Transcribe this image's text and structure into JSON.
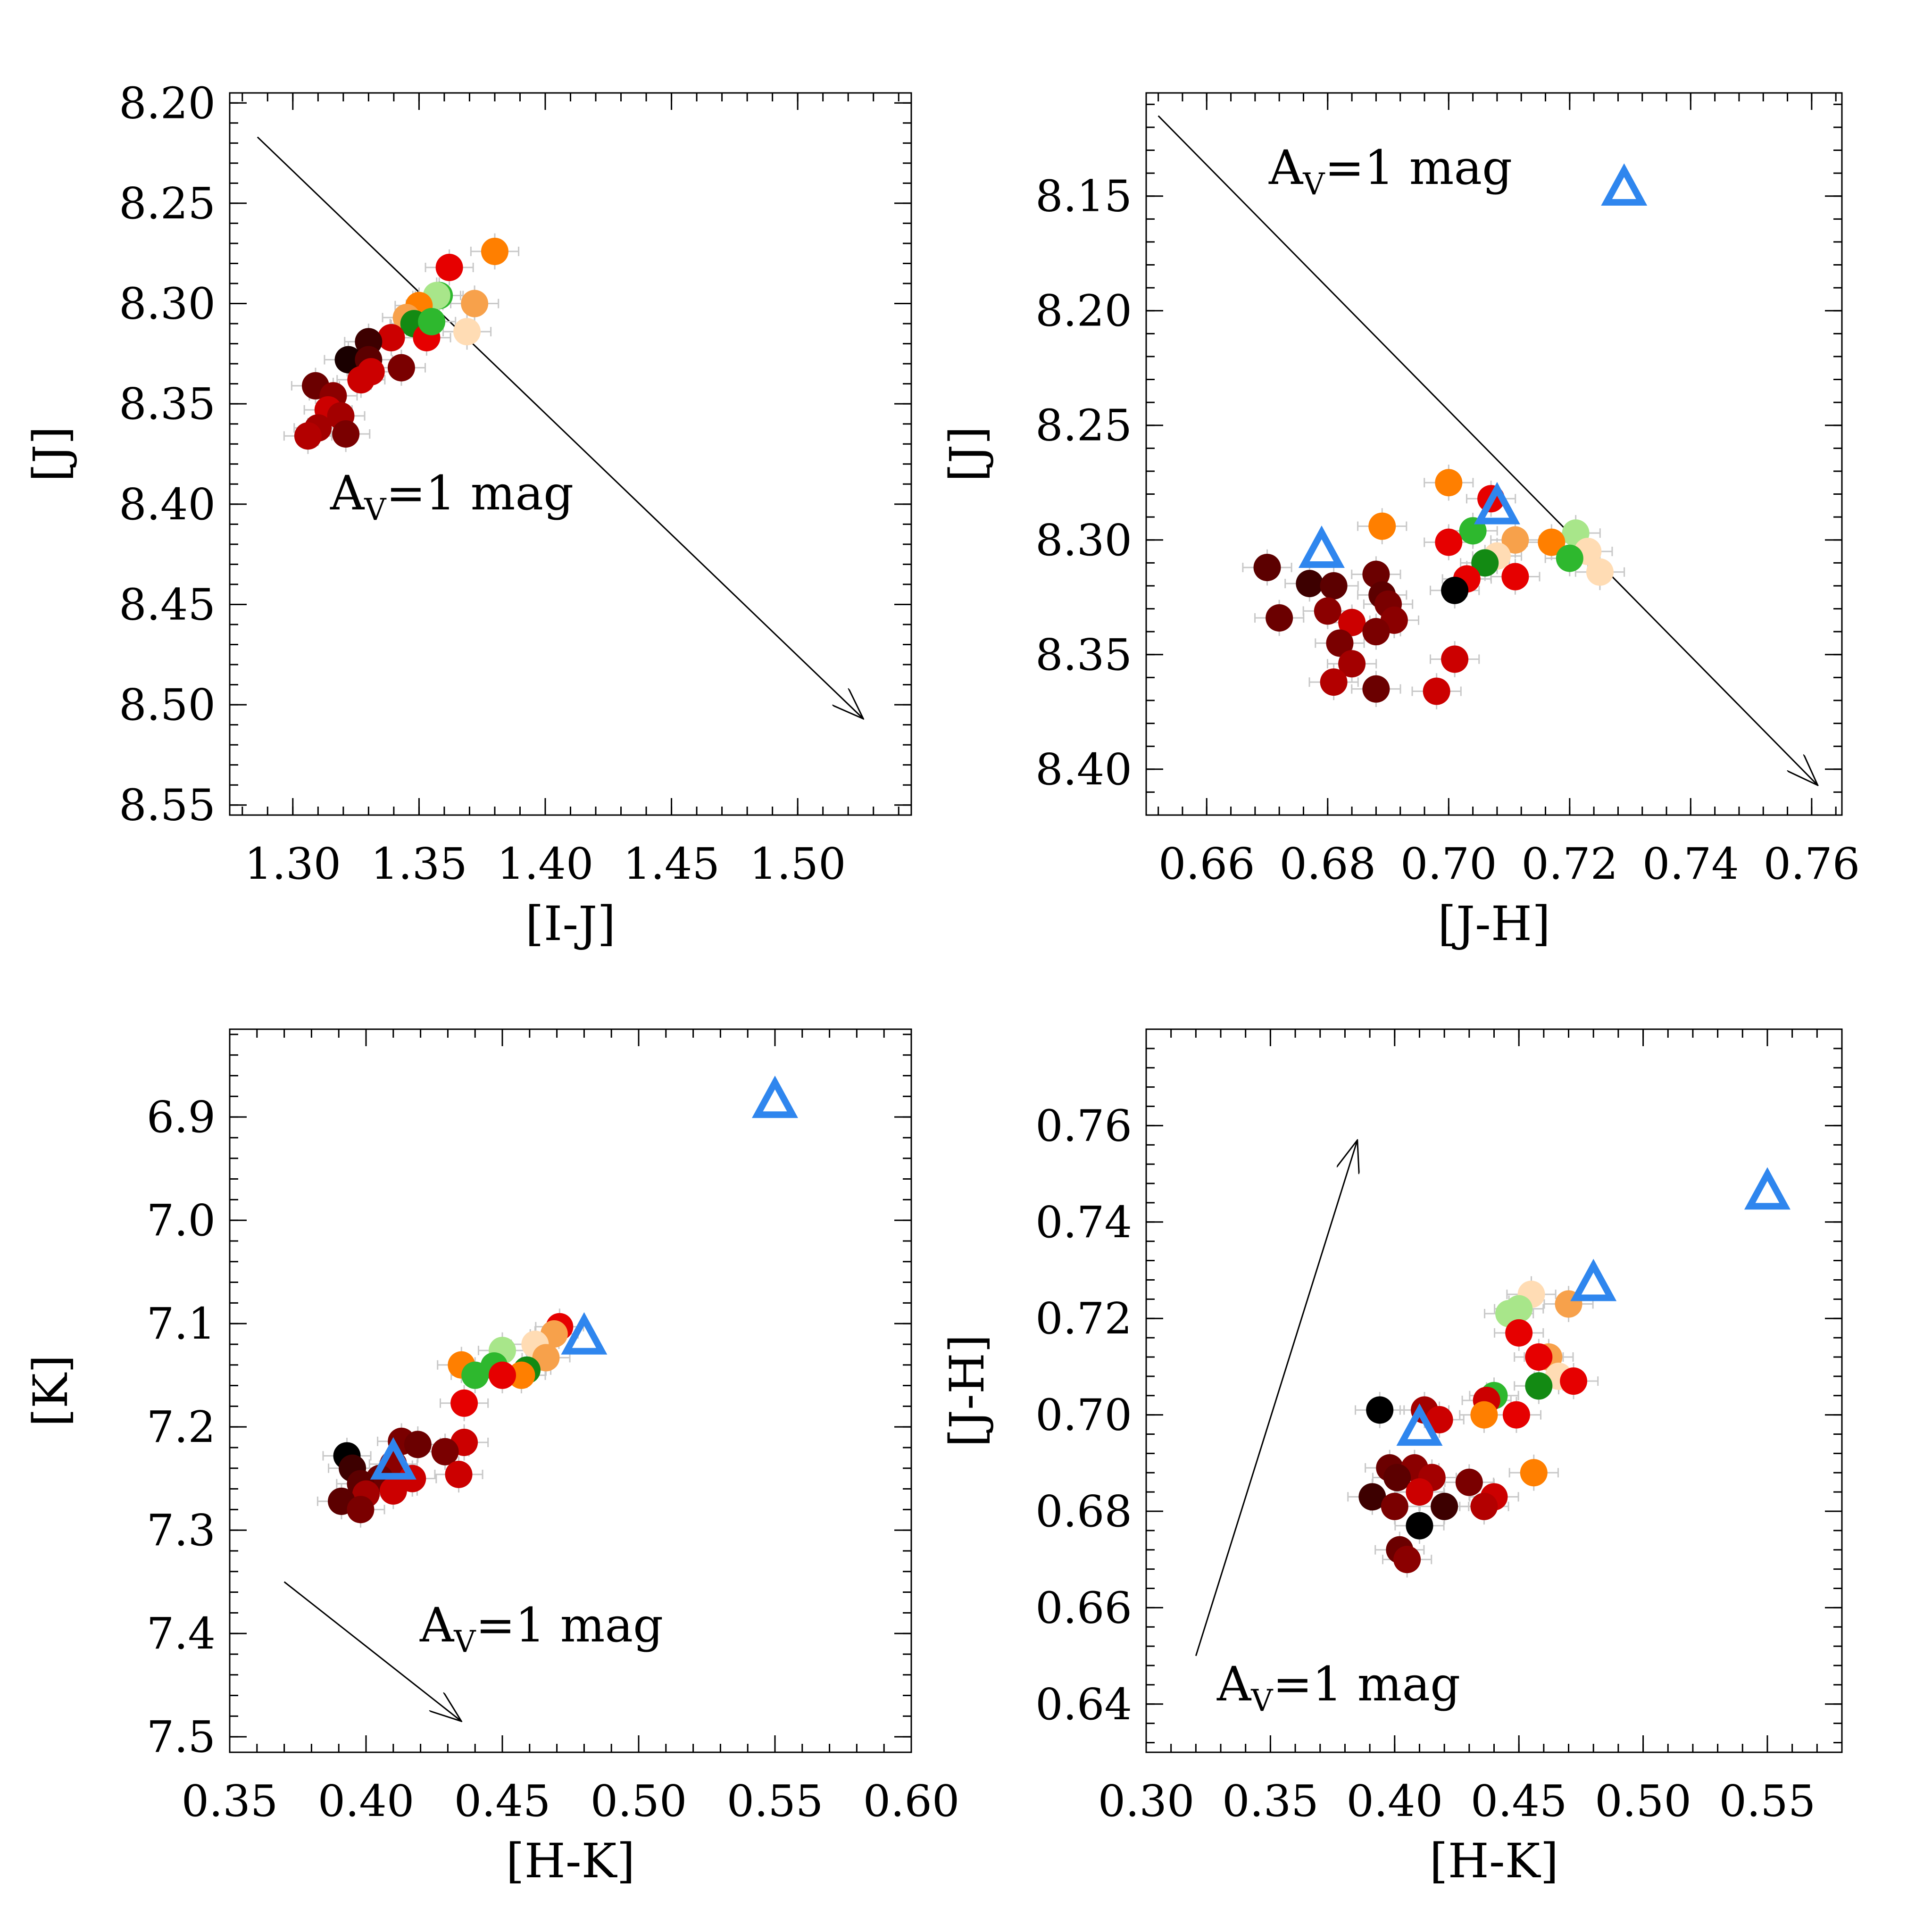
{
  "chart_data": [
    {
      "type": "scatter",
      "xlabel": "[I-J]",
      "ylabel": "[J]",
      "xlim": [
        1.275,
        1.545
      ],
      "ylim": [
        8.555,
        8.195
      ],
      "xticks": [
        "1.30",
        "1.35",
        "1.40",
        "1.45",
        "1.50"
      ],
      "yticks": [
        "8.20",
        "8.25",
        "8.30",
        "8.35",
        "8.40",
        "8.45",
        "8.50",
        "8.55"
      ],
      "annotation": {
        "prefix": "A",
        "sub": "V",
        "suffix": "=1 mag"
      },
      "vector": {
        "from": [
          1.286,
          8.217
        ],
        "to": [
          1.526,
          8.507
        ]
      },
      "points": [
        {
          "x": 1.38,
          "y": 8.274,
          "c": "#ff7f00"
        },
        {
          "x": 1.362,
          "y": 8.282,
          "c": "#e60000"
        },
        {
          "x": 1.372,
          "y": 8.3,
          "c": "#f7a14b"
        },
        {
          "x": 1.369,
          "y": 8.314,
          "c": "#ffdcb4"
        },
        {
          "x": 1.358,
          "y": 8.296,
          "c": "#2eb82e"
        },
        {
          "x": 1.357,
          "y": 8.296,
          "c": "#a8e68a"
        },
        {
          "x": 1.35,
          "y": 8.301,
          "c": "#ff7f00"
        },
        {
          "x": 1.345,
          "y": 8.307,
          "c": "#f7a14b"
        },
        {
          "x": 1.348,
          "y": 8.31,
          "c": "#138a13"
        },
        {
          "x": 1.353,
          "y": 8.317,
          "c": "#e60000"
        },
        {
          "x": 1.355,
          "y": 8.309,
          "c": "#2eb82e"
        },
        {
          "x": 1.339,
          "y": 8.317,
          "c": "#cc0000"
        },
        {
          "x": 1.33,
          "y": 8.319,
          "c": "#3d0000"
        },
        {
          "x": 1.322,
          "y": 8.328,
          "c": "#1a0000"
        },
        {
          "x": 1.33,
          "y": 8.328,
          "c": "#5c0000"
        },
        {
          "x": 1.343,
          "y": 8.332,
          "c": "#7a0000"
        },
        {
          "x": 1.331,
          "y": 8.334,
          "c": "#cc0000"
        },
        {
          "x": 1.327,
          "y": 8.338,
          "c": "#cc0000"
        },
        {
          "x": 1.309,
          "y": 8.341,
          "c": "#6b0000"
        },
        {
          "x": 1.316,
          "y": 8.346,
          "c": "#8b0000"
        },
        {
          "x": 1.314,
          "y": 8.353,
          "c": "#cc0000"
        },
        {
          "x": 1.319,
          "y": 8.356,
          "c": "#a30000"
        },
        {
          "x": 1.31,
          "y": 8.362,
          "c": "#a30000"
        },
        {
          "x": 1.321,
          "y": 8.365,
          "c": "#7a0000"
        },
        {
          "x": 1.306,
          "y": 8.366,
          "c": "#b30000"
        }
      ],
      "triangles": []
    },
    {
      "type": "scatter",
      "xlabel": "[J-H]",
      "ylabel": "[J]",
      "xlim": [
        0.65,
        0.765
      ],
      "ylim": [
        8.42,
        8.105
      ],
      "xticks": [
        "0.66",
        "0.68",
        "0.70",
        "0.72",
        "0.74",
        "0.76"
      ],
      "yticks": [
        "8.15",
        "8.20",
        "8.25",
        "8.30",
        "8.35",
        "8.40"
      ],
      "annotation": {
        "prefix": "A",
        "sub": "V",
        "suffix": "=1 mag"
      },
      "vector": {
        "from": [
          0.652,
          8.115
        ],
        "to": [
          0.761,
          8.407
        ]
      },
      "points": [
        {
          "x": 0.7,
          "y": 8.275,
          "c": "#ff7f00"
        },
        {
          "x": 0.707,
          "y": 8.282,
          "c": "#e60000"
        },
        {
          "x": 0.689,
          "y": 8.294,
          "c": "#ff7f00"
        },
        {
          "x": 0.704,
          "y": 8.296,
          "c": "#2eb82e"
        },
        {
          "x": 0.721,
          "y": 8.297,
          "c": "#a8e68a"
        },
        {
          "x": 0.7,
          "y": 8.301,
          "c": "#e60000"
        },
        {
          "x": 0.711,
          "y": 8.3,
          "c": "#f7a14b"
        },
        {
          "x": 0.717,
          "y": 8.301,
          "c": "#ff7f00"
        },
        {
          "x": 0.723,
          "y": 8.305,
          "c": "#ffdcb4"
        },
        {
          "x": 0.708,
          "y": 8.307,
          "c": "#ffdcb4"
        },
        {
          "x": 0.72,
          "y": 8.308,
          "c": "#2eb82e"
        },
        {
          "x": 0.706,
          "y": 8.31,
          "c": "#138a13"
        },
        {
          "x": 0.725,
          "y": 8.314,
          "c": "#ffdcb4"
        },
        {
          "x": 0.67,
          "y": 8.312,
          "c": "#5c0000"
        },
        {
          "x": 0.688,
          "y": 8.315,
          "c": "#6b0000"
        },
        {
          "x": 0.703,
          "y": 8.317,
          "c": "#e60000"
        },
        {
          "x": 0.711,
          "y": 8.316,
          "c": "#e60000"
        },
        {
          "x": 0.677,
          "y": 8.319,
          "c": "#3d0000"
        },
        {
          "x": 0.681,
          "y": 8.32,
          "c": "#5c0000"
        },
        {
          "x": 0.701,
          "y": 8.322,
          "c": "#000000"
        },
        {
          "x": 0.689,
          "y": 8.324,
          "c": "#5c0000"
        },
        {
          "x": 0.69,
          "y": 8.328,
          "c": "#7a0000"
        },
        {
          "x": 0.68,
          "y": 8.331,
          "c": "#8b0000"
        },
        {
          "x": 0.672,
          "y": 8.334,
          "c": "#6b0000"
        },
        {
          "x": 0.691,
          "y": 8.335,
          "c": "#8b0000"
        },
        {
          "x": 0.684,
          "y": 8.336,
          "c": "#cc0000"
        },
        {
          "x": 0.688,
          "y": 8.34,
          "c": "#7a0000"
        },
        {
          "x": 0.682,
          "y": 8.345,
          "c": "#7a0000"
        },
        {
          "x": 0.701,
          "y": 8.352,
          "c": "#cc0000"
        },
        {
          "x": 0.684,
          "y": 8.354,
          "c": "#a30000"
        },
        {
          "x": 0.681,
          "y": 8.362,
          "c": "#b30000"
        },
        {
          "x": 0.688,
          "y": 8.365,
          "c": "#6b0000"
        },
        {
          "x": 0.698,
          "y": 8.366,
          "c": "#cc0000"
        }
      ],
      "triangles": [
        {
          "x": 0.729,
          "y": 8.147
        },
        {
          "x": 0.708,
          "y": 8.286
        },
        {
          "x": 0.679,
          "y": 8.305
        }
      ]
    },
    {
      "type": "scatter",
      "xlabel": "[H-K]",
      "ylabel": "[K]",
      "xlim": [
        0.35,
        0.6
      ],
      "ylim": [
        7.515,
        6.815
      ],
      "xticks": [
        "0.35",
        "0.40",
        "0.45",
        "0.50",
        "0.55",
        "0.60"
      ],
      "yticks": [
        "6.9",
        "7.0",
        "7.1",
        "7.2",
        "7.3",
        "7.4",
        "7.5"
      ],
      "annotation": {
        "prefix": "A",
        "sub": "V",
        "suffix": "=1 mag"
      },
      "vector": {
        "from": [
          0.37,
          7.35
        ],
        "to": [
          0.435,
          7.485
        ]
      },
      "points": [
        {
          "x": 0.471,
          "y": 7.103,
          "c": "#e60000"
        },
        {
          "x": 0.469,
          "y": 7.11,
          "c": "#f7a14b"
        },
        {
          "x": 0.462,
          "y": 7.12,
          "c": "#ffdcb4"
        },
        {
          "x": 0.45,
          "y": 7.126,
          "c": "#a8e68a"
        },
        {
          "x": 0.466,
          "y": 7.133,
          "c": "#f7a14b"
        },
        {
          "x": 0.435,
          "y": 7.14,
          "c": "#ff7f00"
        },
        {
          "x": 0.447,
          "y": 7.141,
          "c": "#2eb82e"
        },
        {
          "x": 0.459,
          "y": 7.145,
          "c": "#138a13"
        },
        {
          "x": 0.44,
          "y": 7.15,
          "c": "#2eb82e"
        },
        {
          "x": 0.457,
          "y": 7.15,
          "c": "#ff7f00"
        },
        {
          "x": 0.45,
          "y": 7.15,
          "c": "#e60000"
        },
        {
          "x": 0.436,
          "y": 7.177,
          "c": "#e60000"
        },
        {
          "x": 0.436,
          "y": 7.215,
          "c": "#cc0000"
        },
        {
          "x": 0.413,
          "y": 7.214,
          "c": "#7a0000"
        },
        {
          "x": 0.419,
          "y": 7.217,
          "c": "#6b0000"
        },
        {
          "x": 0.429,
          "y": 7.224,
          "c": "#7a0000"
        },
        {
          "x": 0.393,
          "y": 7.228,
          "c": "#000000"
        },
        {
          "x": 0.41,
          "y": 7.236,
          "c": "#8b0000"
        },
        {
          "x": 0.395,
          "y": 7.24,
          "c": "#3d0000"
        },
        {
          "x": 0.434,
          "y": 7.246,
          "c": "#cc0000"
        },
        {
          "x": 0.417,
          "y": 7.25,
          "c": "#cc0000"
        },
        {
          "x": 0.405,
          "y": 7.25,
          "c": "#6b0000"
        },
        {
          "x": 0.398,
          "y": 7.255,
          "c": "#5c0000"
        },
        {
          "x": 0.41,
          "y": 7.262,
          "c": "#cc0000"
        },
        {
          "x": 0.4,
          "y": 7.265,
          "c": "#a30000"
        },
        {
          "x": 0.391,
          "y": 7.272,
          "c": "#5c0000"
        },
        {
          "x": 0.398,
          "y": 7.28,
          "c": "#7a0000"
        }
      ],
      "triangles": [
        {
          "x": 0.55,
          "y": 6.885
        },
        {
          "x": 0.48,
          "y": 7.114
        },
        {
          "x": 0.41,
          "y": 7.235
        }
      ]
    },
    {
      "type": "scatter",
      "xlabel": "[H-K]",
      "ylabel": "[J-H]",
      "xlim": [
        0.3,
        0.58
      ],
      "ylim": [
        0.63,
        0.78
      ],
      "xticks": [
        "0.30",
        "0.35",
        "0.40",
        "0.45",
        "0.50",
        "0.55"
      ],
      "yticks": [
        "0.64",
        "0.66",
        "0.68",
        "0.70",
        "0.72",
        "0.74",
        "0.76"
      ],
      "annotation": {
        "prefix": "A",
        "sub": "V",
        "suffix": "=1 mag"
      },
      "vector": {
        "from": [
          0.32,
          0.65
        ],
        "to": [
          0.385,
          0.757
        ]
      },
      "points": [
        {
          "x": 0.455,
          "y": 0.725,
          "c": "#ffdcb4"
        },
        {
          "x": 0.47,
          "y": 0.723,
          "c": "#f7a14b"
        },
        {
          "x": 0.45,
          "y": 0.722,
          "c": "#a8e68a"
        },
        {
          "x": 0.446,
          "y": 0.721,
          "c": "#a8e68a"
        },
        {
          "x": 0.45,
          "y": 0.717,
          "c": "#e60000"
        },
        {
          "x": 0.462,
          "y": 0.712,
          "c": "#f7a14b"
        },
        {
          "x": 0.458,
          "y": 0.712,
          "c": "#e60000"
        },
        {
          "x": 0.466,
          "y": 0.708,
          "c": "#ffdcb4"
        },
        {
          "x": 0.472,
          "y": 0.707,
          "c": "#e60000"
        },
        {
          "x": 0.458,
          "y": 0.706,
          "c": "#138a13"
        },
        {
          "x": 0.44,
          "y": 0.704,
          "c": "#2eb82e"
        },
        {
          "x": 0.437,
          "y": 0.703,
          "c": "#cc0000"
        },
        {
          "x": 0.394,
          "y": 0.701,
          "c": "#000000"
        },
        {
          "x": 0.412,
          "y": 0.701,
          "c": "#a30000"
        },
        {
          "x": 0.418,
          "y": 0.699,
          "c": "#cc0000"
        },
        {
          "x": 0.436,
          "y": 0.7,
          "c": "#ff7f00"
        },
        {
          "x": 0.449,
          "y": 0.7,
          "c": "#e60000"
        },
        {
          "x": 0.398,
          "y": 0.689,
          "c": "#6b0000"
        },
        {
          "x": 0.408,
          "y": 0.689,
          "c": "#8b0000"
        },
        {
          "x": 0.456,
          "y": 0.688,
          "c": "#ff7f00"
        },
        {
          "x": 0.401,
          "y": 0.687,
          "c": "#5c0000"
        },
        {
          "x": 0.415,
          "y": 0.687,
          "c": "#a30000"
        },
        {
          "x": 0.43,
          "y": 0.686,
          "c": "#7a0000"
        },
        {
          "x": 0.391,
          "y": 0.683,
          "c": "#3d0000"
        },
        {
          "x": 0.41,
          "y": 0.684,
          "c": "#cc0000"
        },
        {
          "x": 0.44,
          "y": 0.683,
          "c": "#cc0000"
        },
        {
          "x": 0.4,
          "y": 0.681,
          "c": "#7a0000"
        },
        {
          "x": 0.42,
          "y": 0.681,
          "c": "#3d0000"
        },
        {
          "x": 0.436,
          "y": 0.681,
          "c": "#b30000"
        },
        {
          "x": 0.41,
          "y": 0.677,
          "c": "#000000"
        },
        {
          "x": 0.402,
          "y": 0.672,
          "c": "#6b0000"
        },
        {
          "x": 0.405,
          "y": 0.67,
          "c": "#8b0000"
        }
      ],
      "triangles": [
        {
          "x": 0.55,
          "y": 0.746
        },
        {
          "x": 0.48,
          "y": 0.727
        },
        {
          "x": 0.41,
          "y": 0.697
        }
      ]
    }
  ]
}
